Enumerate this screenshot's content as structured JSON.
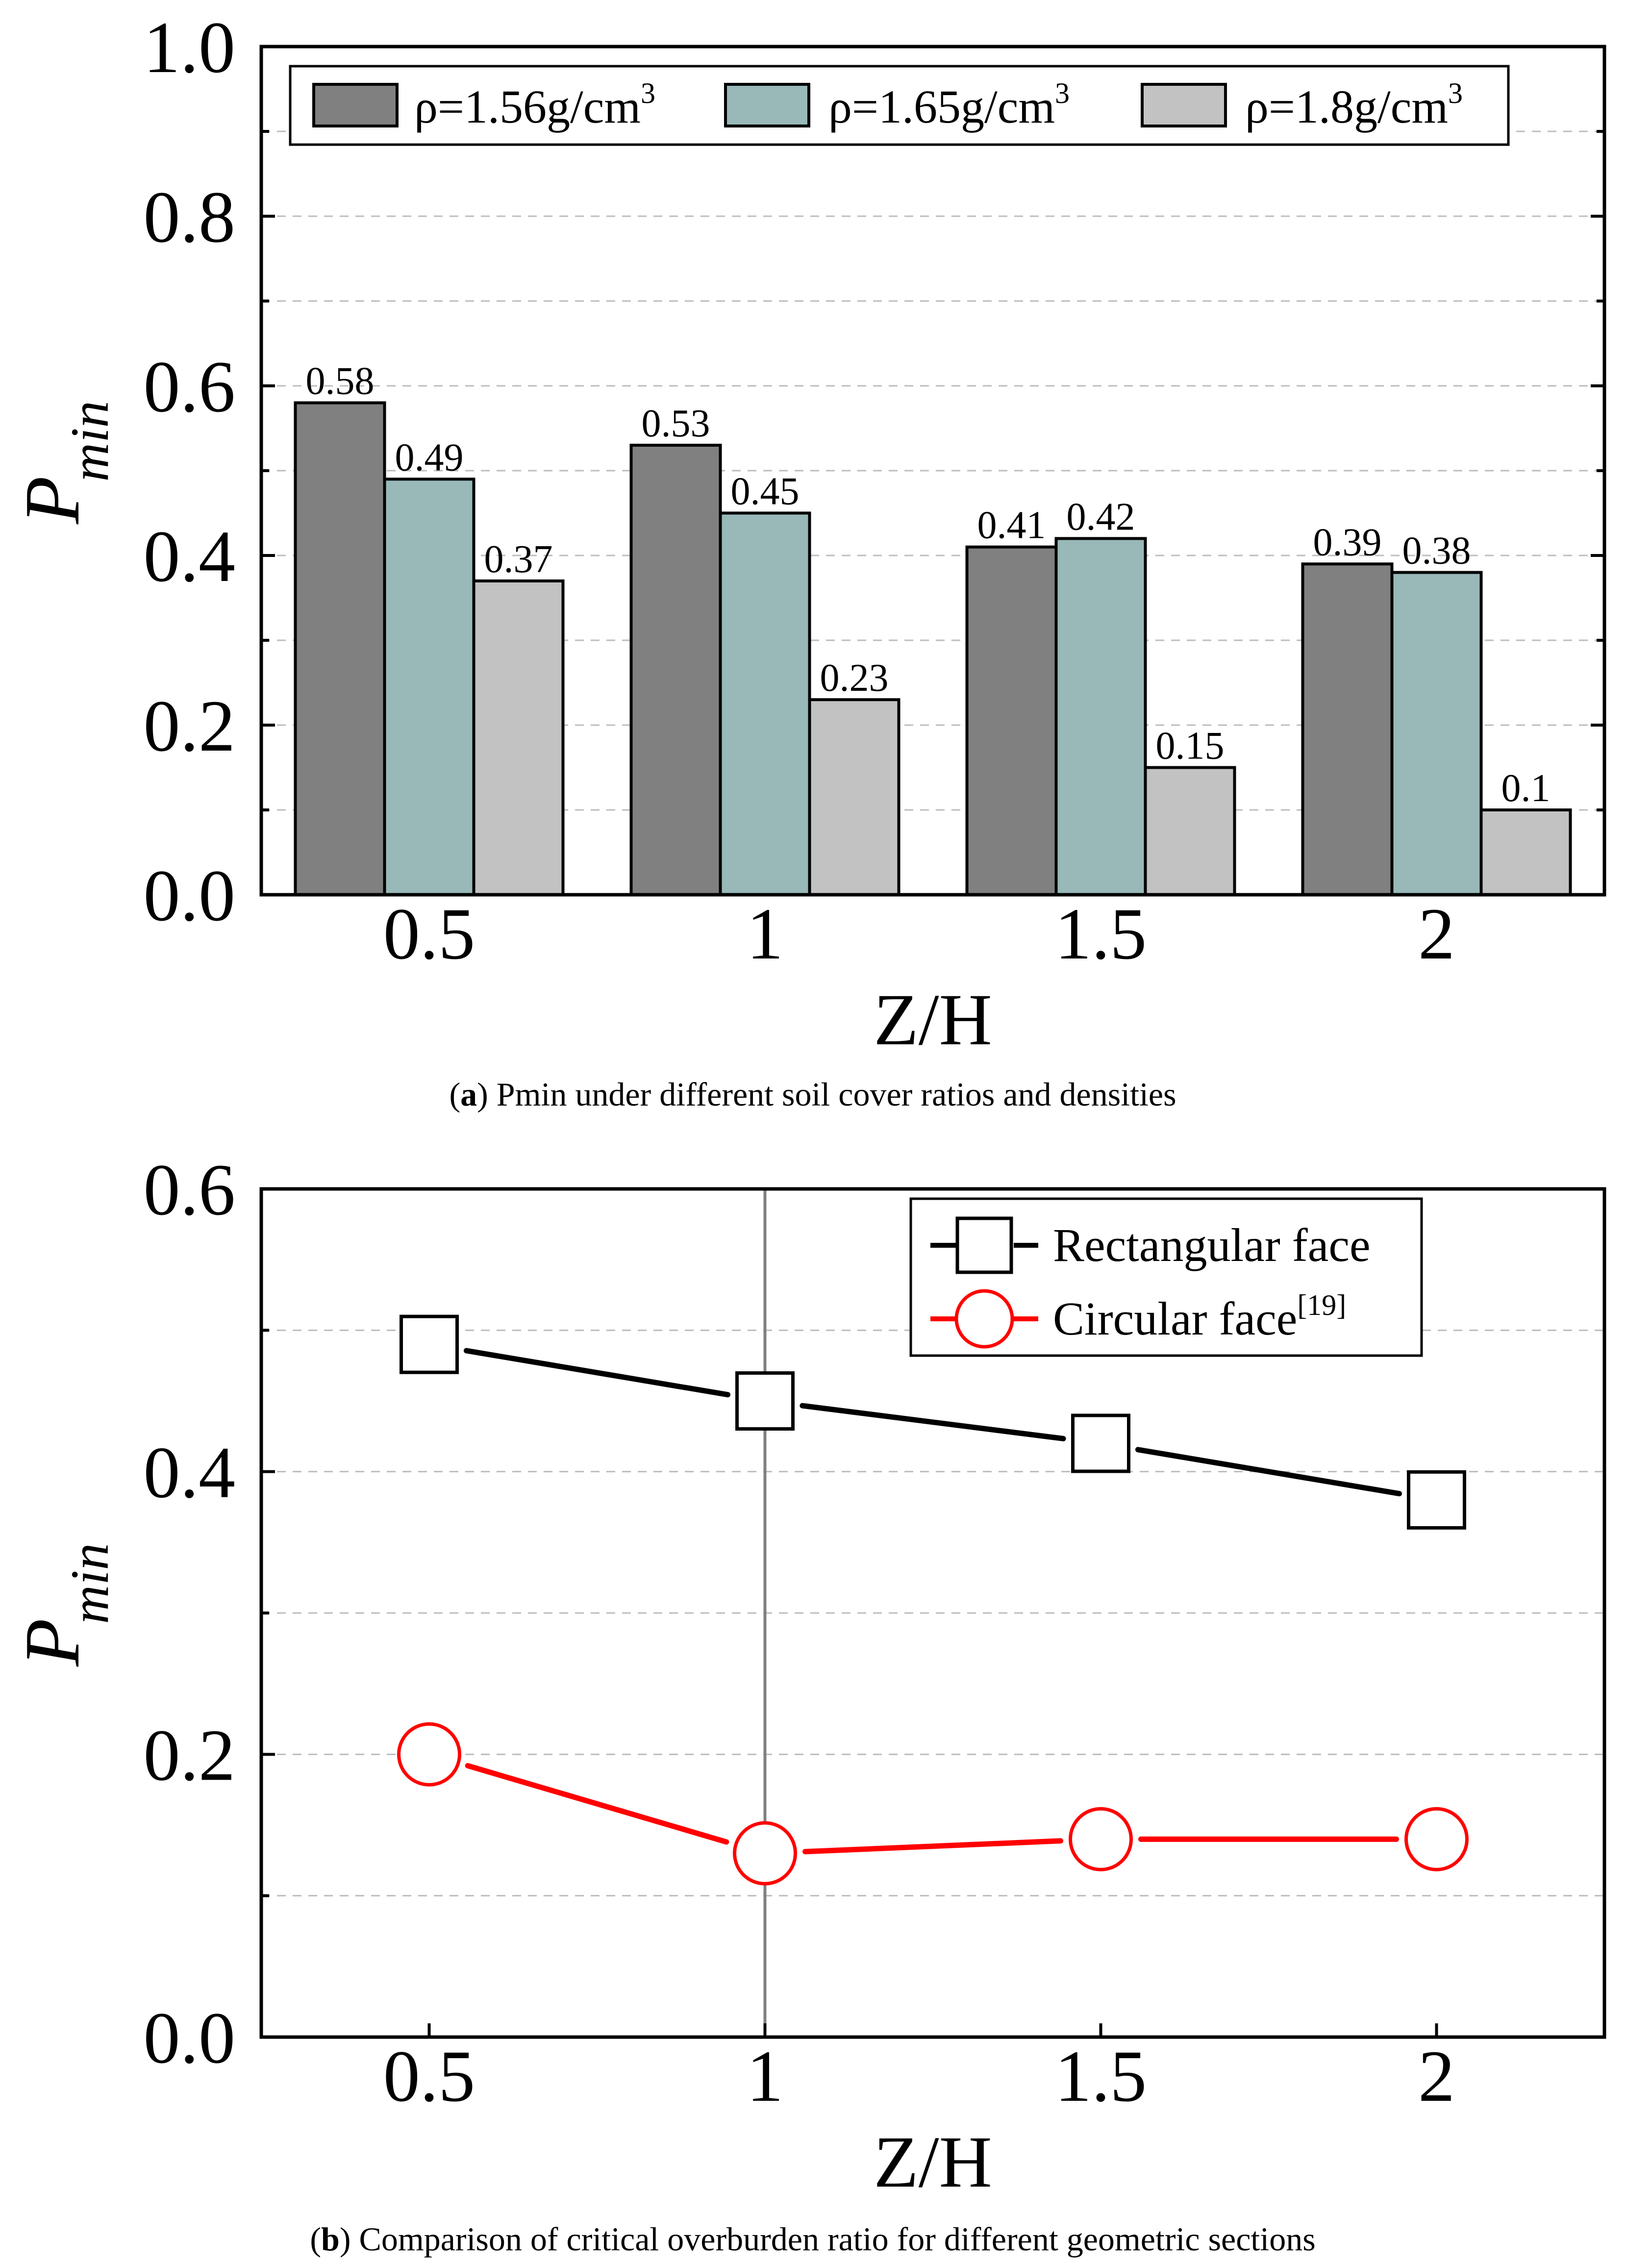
{
  "chart_data": [
    {
      "type": "bar",
      "categories": [
        "0.5",
        "1",
        "1.5",
        "2"
      ],
      "series": [
        {
          "name": "ρ=1.56g/cm",
          "sup": "3",
          "values": [
            0.58,
            0.53,
            0.41,
            0.39
          ],
          "color": "#808080"
        },
        {
          "name": "ρ=1.65g/cm",
          "sup": "3",
          "values": [
            0.49,
            0.45,
            0.42,
            0.38
          ],
          "color": "#98B9B8"
        },
        {
          "name": "ρ=1.8g/cm",
          "sup": "3",
          "values": [
            0.37,
            0.23,
            0.15,
            0.1
          ],
          "color": "#C2C2C2"
        }
      ],
      "data_labels": [
        [
          "0.58",
          "0.53",
          "0.41",
          "0.39"
        ],
        [
          "0.49",
          "0.45",
          "0.42",
          "0.38"
        ],
        [
          "0.37",
          "0.23",
          "0.15",
          "0.1"
        ]
      ],
      "ylim": [
        0,
        1.0
      ],
      "yticks": [
        "0.0",
        "0.2",
        "0.4",
        "0.6",
        "0.8",
        "1.0"
      ],
      "xlabel": "Z/H",
      "ylabel": "P",
      "ylabel_sub": "min",
      "grid": true,
      "legend": "top",
      "caption_tag": "a",
      "caption_text": " Pmin under different soil cover ratios and densities"
    },
    {
      "type": "line",
      "x": [
        0.5,
        1,
        1.5,
        2
      ],
      "xticks": [
        "0.5",
        "1",
        "1.5",
        "2"
      ],
      "series": [
        {
          "name": "Rectangular face",
          "sup": "",
          "values": [
            0.49,
            0.45,
            0.42,
            0.38
          ],
          "color": "#000000",
          "marker": "square"
        },
        {
          "name": "Circular face",
          "sup": "[19]",
          "values": [
            0.2,
            0.13,
            0.14,
            0.14
          ],
          "color": "#FF0000",
          "marker": "circle"
        }
      ],
      "xlim": [
        0.25,
        2.25
      ],
      "ylim": [
        0,
        0.6
      ],
      "yticks": [
        "0.0",
        "0.2",
        "0.4",
        "0.6"
      ],
      "xlabel": "Z/H",
      "ylabel": "P",
      "ylabel_sub": "min",
      "grid": true,
      "legend": "top-right",
      "caption_tag": "b",
      "caption_text": " Comparison of critical overburden ratio for different geometric sections"
    }
  ]
}
